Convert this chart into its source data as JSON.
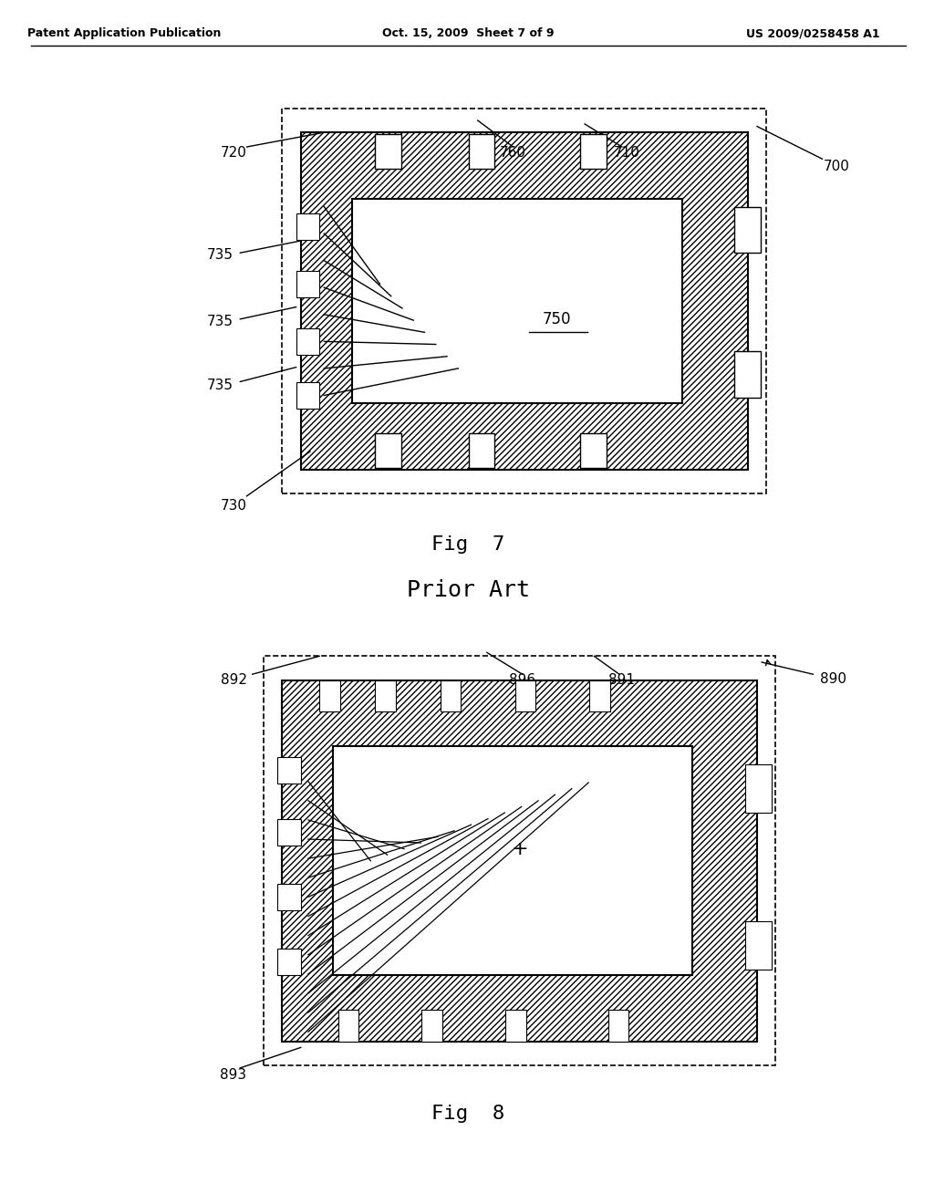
{
  "bg_color": "#ffffff",
  "header_left": "Patent Application Publication",
  "header_center": "Oct. 15, 2009  Sheet 7 of 9",
  "header_right": "US 2009/0258458 A1",
  "fig7_title": "Fig  7",
  "prior_art": "Prior Art",
  "fig8_title": "Fig  8"
}
